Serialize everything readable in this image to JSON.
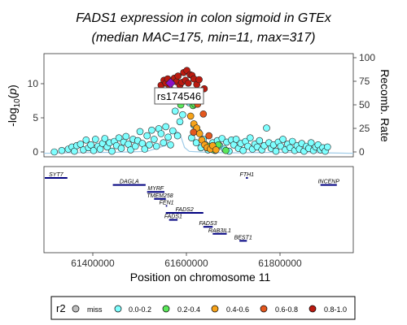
{
  "title": "FADS1 expression in colon sigmoid in GTEx",
  "subtitle": "(median MAC=175, min=11, max=317)",
  "chart_data": {
    "type": "scatter",
    "title": "FADS1 expression in colon sigmoid in GTEx",
    "subtitle": "(median MAC=175, min=11, max=317)",
    "xlabel": "Position on chromosome 11",
    "ylabel": "-log10(p)",
    "ylabel_right": "Recomb. Rate",
    "xlim": [
      61300000,
      61960000
    ],
    "ylim": [
      -0.5,
      14.2
    ],
    "ylim_right": [
      -3.5,
      101
    ],
    "x_ticks": [
      61400000,
      61600000,
      61800000
    ],
    "y_ticks": [
      0,
      5,
      10
    ],
    "y_ticks_right": [
      0,
      25,
      50,
      75,
      100
    ],
    "lead_snp": {
      "label": "rs174546",
      "x": 61570000,
      "y": 10.0
    },
    "colors": {
      "miss": "#bebebe",
      "0.0-0.2": "#7fffff",
      "0.2-0.4": "#5ae85a",
      "0.4-0.6": "#f7a31a",
      "0.6-0.8": "#e4571d",
      "0.8-1.0": "#bb1a10",
      "lead": "#8c12c4",
      "recomb": "#9ecbe8",
      "gene": "#000080"
    },
    "series": [
      {
        "name": "0.0-0.2",
        "points": [
          [
            61322000,
            0.2
          ],
          [
            61338000,
            0.4
          ],
          [
            61352000,
            0.6
          ],
          [
            61360000,
            0.9
          ],
          [
            61365000,
            0.3
          ],
          [
            61370000,
            1.1
          ],
          [
            61378000,
            1.3
          ],
          [
            61384000,
            0.5
          ],
          [
            61390000,
            1.9
          ],
          [
            61395000,
            0.8
          ],
          [
            61400000,
            1.2
          ],
          [
            61406000,
            0.4
          ],
          [
            61410000,
            2.0
          ],
          [
            61415000,
            1.0
          ],
          [
            61420000,
            0.6
          ],
          [
            61425000,
            1.4
          ],
          [
            61430000,
            2.1
          ],
          [
            61435000,
            0.9
          ],
          [
            61440000,
            1.5
          ],
          [
            61445000,
            0.3
          ],
          [
            61450000,
            1.7
          ],
          [
            61455000,
            1.1
          ],
          [
            61460000,
            2.2
          ],
          [
            61465000,
            0.7
          ],
          [
            61470000,
            1.6
          ],
          [
            61475000,
            2.4
          ],
          [
            61480000,
            1.3
          ],
          [
            61485000,
            0.5
          ],
          [
            61490000,
            2.0
          ],
          [
            61495000,
            1.0
          ],
          [
            61500000,
            1.8
          ],
          [
            61505000,
            3.1
          ],
          [
            61510000,
            1.4
          ],
          [
            61515000,
            0.6
          ],
          [
            61520000,
            2.5
          ],
          [
            61525000,
            1.2
          ],
          [
            61530000,
            3.3
          ],
          [
            61535000,
            2.0
          ],
          [
            61540000,
            1.0
          ],
          [
            61545000,
            3.5
          ],
          [
            61550000,
            2.8
          ],
          [
            61555000,
            1.5
          ],
          [
            61560000,
            3.8
          ],
          [
            61565000,
            2.3
          ],
          [
            61570000,
            1.2
          ],
          [
            61575000,
            3.2
          ],
          [
            61580000,
            6.0
          ],
          [
            61585000,
            2.5
          ],
          [
            61590000,
            4.5
          ],
          [
            61596000,
            5.5
          ],
          [
            61610000,
            7.2
          ],
          [
            61615000,
            2.2
          ],
          [
            61620000,
            4.0
          ],
          [
            61625000,
            1.5
          ],
          [
            61630000,
            3.0
          ],
          [
            61635000,
            0.8
          ],
          [
            61640000,
            2.0
          ],
          [
            61645000,
            1.2
          ],
          [
            61650000,
            0.5
          ],
          [
            61655000,
            0.9
          ],
          [
            61660000,
            1.5
          ],
          [
            61665000,
            0.4
          ],
          [
            61670000,
            1.8
          ],
          [
            61675000,
            1.1
          ],
          [
            61680000,
            2.1
          ],
          [
            61685000,
            0.6
          ],
          [
            61690000,
            1.6
          ],
          [
            61695000,
            0.3
          ],
          [
            61700000,
            1.9
          ],
          [
            61705000,
            1.2
          ],
          [
            61710000,
            2.0
          ],
          [
            61715000,
            0.7
          ],
          [
            61720000,
            1.4
          ],
          [
            61725000,
            0.4
          ],
          [
            61730000,
            1.7
          ],
          [
            61735000,
            1.0
          ],
          [
            61740000,
            2.2
          ],
          [
            61745000,
            0.6
          ],
          [
            61750000,
            1.3
          ],
          [
            61755000,
            0.9
          ],
          [
            61760000,
            1.8
          ],
          [
            61765000,
            0.5
          ],
          [
            61770000,
            1.1
          ],
          [
            61775000,
            3.6
          ],
          [
            61780000,
            1.5
          ],
          [
            61785000,
            0.7
          ],
          [
            61790000,
            1.2
          ],
          [
            61795000,
            0.3
          ],
          [
            61800000,
            1.6
          ],
          [
            61805000,
            1.0
          ],
          [
            61810000,
            2.0
          ],
          [
            61815000,
            0.5
          ],
          [
            61820000,
            1.3
          ],
          [
            61825000,
            0.8
          ],
          [
            61830000,
            1.7
          ],
          [
            61835000,
            0.4
          ],
          [
            61840000,
            1.1
          ],
          [
            61845000,
            0.6
          ],
          [
            61850000,
            1.4
          ],
          [
            61855000,
            0.3
          ],
          [
            61860000,
            1.0
          ],
          [
            61865000,
            0.7
          ],
          [
            61870000,
            1.5
          ],
          [
            61875000,
            0.4
          ],
          [
            61880000,
            0.9
          ],
          [
            61885000,
            1.2
          ],
          [
            61890000,
            0.5
          ],
          [
            61895000,
            0.8
          ],
          [
            61900000,
            0.3
          ],
          [
            61905000,
            0.9
          ]
        ]
      },
      {
        "name": "0.2-0.4",
        "points": [
          [
            61592000,
            6.9
          ],
          [
            61607000,
            7.5
          ],
          [
            61618000,
            6.8
          ],
          [
            61622000,
            7.0
          ],
          [
            61603000,
            7.6
          ],
          [
            61650000,
            1.0
          ],
          [
            61662000,
            0.5
          ],
          [
            61672000,
            1.2
          ],
          [
            61688000,
            0.4
          ]
        ]
      },
      {
        "name": "0.4-0.6",
        "points": [
          [
            61613000,
            5.3
          ],
          [
            61620000,
            4.2
          ],
          [
            61626000,
            3.6
          ],
          [
            61632000,
            2.8
          ],
          [
            61637000,
            1.9
          ],
          [
            61643000,
            1.2
          ],
          [
            61648000,
            0.8
          ],
          [
            61655000,
            0.6
          ],
          [
            61660000,
            1.1
          ],
          [
            61667000,
            0.5
          ]
        ]
      },
      {
        "name": "0.6-0.8",
        "points": [
          [
            61624000,
            8.5
          ],
          [
            61628000,
            7.0
          ],
          [
            61640000,
            5.6
          ],
          [
            61652000,
            2.5
          ],
          [
            61619000,
            3.0
          ]
        ]
      },
      {
        "name": "0.8-1.0",
        "points": [
          [
            61550000,
            9.7
          ],
          [
            61556000,
            10.4
          ],
          [
            61560000,
            10.0
          ],
          [
            61564000,
            10.6
          ],
          [
            61568000,
            9.3
          ],
          [
            61574000,
            10.3
          ],
          [
            61578000,
            10.7
          ],
          [
            61583000,
            10.2
          ],
          [
            61586000,
            11.0
          ],
          [
            61590000,
            9.7
          ],
          [
            61594000,
            10.1
          ],
          [
            61598000,
            11.5
          ],
          [
            61602000,
            10.4
          ],
          [
            61605000,
            11.8
          ],
          [
            61608000,
            10.0
          ],
          [
            61612000,
            11.2
          ],
          [
            61616000,
            11.1
          ],
          [
            61620000,
            10.6
          ],
          [
            61626000,
            9.8
          ],
          [
            61631000,
            10.5
          ],
          [
            61642000,
            9.2
          ]
        ]
      }
    ],
    "recomb_line": [
      [
        61300000,
        0
      ],
      [
        61350000,
        0.5
      ],
      [
        61450000,
        1
      ],
      [
        61520000,
        2
      ],
      [
        61560000,
        8
      ],
      [
        61575000,
        25
      ],
      [
        61590000,
        20
      ],
      [
        61600000,
        6
      ],
      [
        61610000,
        2
      ],
      [
        61650000,
        1
      ],
      [
        61700000,
        0.5
      ],
      [
        61800000,
        1
      ],
      [
        61900000,
        0.5
      ],
      [
        61960000,
        0
      ]
    ],
    "genes": [
      {
        "name": "SYT7",
        "start": 61300000,
        "end": 61350000,
        "row": 0
      },
      {
        "name": "FTH1",
        "start": 61731000,
        "end": 61735000,
        "row": 0
      },
      {
        "name": "INCENP",
        "start": 61890000,
        "end": 61925000,
        "row": 1
      },
      {
        "name": "DAGLA",
        "start": 61447000,
        "end": 61517000,
        "row": 1
      },
      {
        "name": "MYRF",
        "start": 61520000,
        "end": 61557000,
        "row": 2
      },
      {
        "name": "TMEM258",
        "start": 61535000,
        "end": 61560000,
        "row": 3
      },
      {
        "name": "FEN1",
        "start": 61560000,
        "end": 61563000,
        "row": 4
      },
      {
        "name": "FADS2",
        "start": 61560000,
        "end": 61640000,
        "row": 5
      },
      {
        "name": "FADS1",
        "start": 61567000,
        "end": 61585000,
        "row": 6
      },
      {
        "name": "FADS3",
        "start": 61640000,
        "end": 61660000,
        "row": 7
      },
      {
        "name": "RAB3IL1",
        "start": 61660000,
        "end": 61690000,
        "row": 8
      },
      {
        "name": "BEST1",
        "start": 61717000,
        "end": 61733000,
        "row": 9
      }
    ]
  },
  "legend": {
    "title": "r2",
    "items": [
      {
        "label": "miss",
        "color": "#bebebe"
      },
      {
        "label": "0.0-0.2",
        "color": "#7fffff"
      },
      {
        "label": "0.2-0.4",
        "color": "#5ae85a"
      },
      {
        "label": "0.4-0.6",
        "color": "#f7a31a"
      },
      {
        "label": "0.6-0.8",
        "color": "#e4571d"
      },
      {
        "label": "0.8-1.0",
        "color": "#bb1a10"
      }
    ]
  },
  "ui": {
    "x_tick_labels": [
      "61400000",
      "61600000",
      "61800000"
    ],
    "y_tick_labels": [
      "0",
      "5",
      "10"
    ],
    "y_tick_labels_right": [
      "0",
      "25",
      "50",
      "75",
      "100"
    ],
    "ylabel_base": "-log",
    "ylabel_sub": "10",
    "ylabel_p": "p"
  }
}
